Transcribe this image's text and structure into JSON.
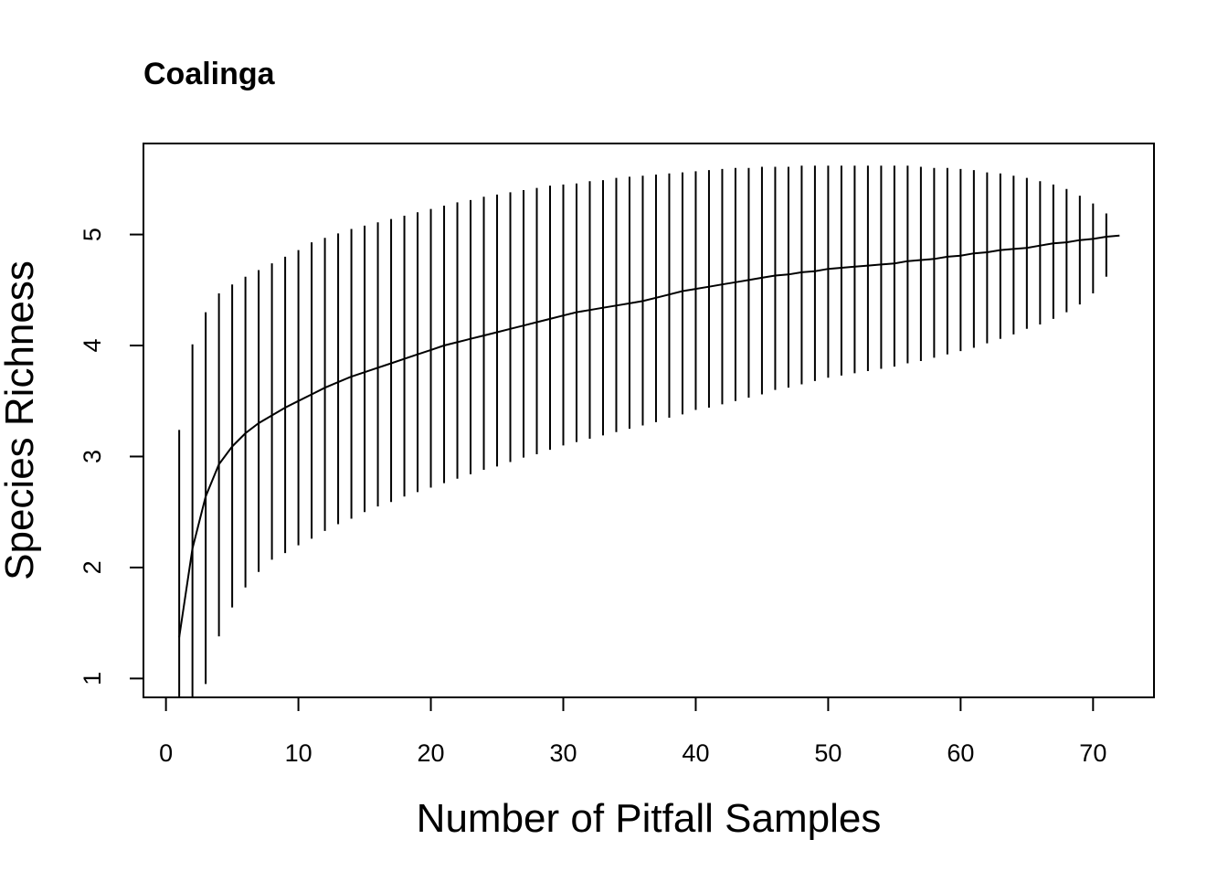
{
  "chart_data": {
    "type": "line",
    "title": "Coalinga",
    "xlabel": "Number of Pitfall Samples",
    "ylabel": "Species Richness",
    "xlim": [
      -1.7,
      74.6
    ],
    "ylim": [
      0.83,
      5.82
    ],
    "x_ticks": [
      "0",
      "10",
      "20",
      "30",
      "40",
      "50",
      "60",
      "70"
    ],
    "y_ticks": [
      "1",
      "2",
      "3",
      "4",
      "5"
    ],
    "grid": false,
    "legend": "none",
    "line_color": "#000000",
    "series": [
      {
        "x": [
          1,
          2,
          3,
          4,
          5,
          6,
          7,
          8,
          9,
          10,
          11,
          12,
          13,
          14,
          15,
          16,
          17,
          18,
          19,
          20,
          21,
          22,
          23,
          24,
          25,
          26,
          27,
          28,
          29,
          30,
          31,
          32,
          33,
          34,
          35,
          36,
          37,
          38,
          39,
          40,
          41,
          42,
          43,
          44,
          45,
          46,
          47,
          48,
          49,
          50,
          51,
          52,
          53,
          54,
          55,
          56,
          57,
          58,
          59,
          60,
          61,
          62,
          63,
          64,
          65,
          66,
          67,
          68,
          69,
          70,
          71,
          72
        ],
        "y": [
          1.37,
          2.17,
          2.64,
          2.93,
          3.09,
          3.21,
          3.3,
          3.37,
          3.44,
          3.5,
          3.56,
          3.62,
          3.67,
          3.72,
          3.76,
          3.8,
          3.84,
          3.88,
          3.92,
          3.96,
          4.0,
          4.03,
          4.06,
          4.09,
          4.12,
          4.15,
          4.18,
          4.21,
          4.24,
          4.27,
          4.3,
          4.32,
          4.34,
          4.36,
          4.38,
          4.4,
          4.43,
          4.46,
          4.49,
          4.51,
          4.53,
          4.55,
          4.57,
          4.59,
          4.61,
          4.63,
          4.64,
          4.66,
          4.67,
          4.69,
          4.7,
          4.71,
          4.72,
          4.73,
          4.74,
          4.76,
          4.77,
          4.78,
          4.8,
          4.81,
          4.83,
          4.84,
          4.86,
          4.87,
          4.88,
          4.9,
          4.92,
          4.93,
          4.95,
          4.96,
          4.98,
          4.99
        ],
        "upper": [
          3.24,
          4.01,
          4.3,
          4.47,
          4.55,
          4.62,
          4.68,
          4.74,
          4.8,
          4.86,
          4.93,
          4.97,
          5.01,
          5.05,
          5.08,
          5.11,
          5.14,
          5.17,
          5.2,
          5.23,
          5.26,
          5.29,
          5.31,
          5.34,
          5.36,
          5.38,
          5.4,
          5.42,
          5.44,
          5.45,
          5.46,
          5.48,
          5.49,
          5.51,
          5.52,
          5.53,
          5.54,
          5.55,
          5.56,
          5.57,
          5.58,
          5.59,
          5.6,
          5.6,
          5.61,
          5.61,
          5.61,
          5.62,
          5.62,
          5.62,
          5.62,
          5.62,
          5.62,
          5.62,
          5.62,
          5.62,
          5.61,
          5.6,
          5.6,
          5.59,
          5.58,
          5.56,
          5.55,
          5.53,
          5.51,
          5.48,
          5.45,
          5.41,
          5.35,
          5.28,
          5.19,
          5.0
        ],
        "lower": [
          0.83,
          0.83,
          0.95,
          1.38,
          1.64,
          1.82,
          1.96,
          2.07,
          2.13,
          2.2,
          2.26,
          2.33,
          2.39,
          2.44,
          2.5,
          2.55,
          2.59,
          2.64,
          2.68,
          2.72,
          2.76,
          2.8,
          2.84,
          2.88,
          2.91,
          2.95,
          2.99,
          3.02,
          3.06,
          3.1,
          3.13,
          3.16,
          3.19,
          3.22,
          3.25,
          3.28,
          3.31,
          3.35,
          3.38,
          3.42,
          3.44,
          3.47,
          3.5,
          3.53,
          3.56,
          3.6,
          3.62,
          3.65,
          3.68,
          3.71,
          3.73,
          3.75,
          3.77,
          3.79,
          3.81,
          3.84,
          3.86,
          3.89,
          3.92,
          3.95,
          3.98,
          4.02,
          4.06,
          4.1,
          4.15,
          4.19,
          4.24,
          4.3,
          4.37,
          4.47,
          4.62,
          5.0
        ]
      }
    ]
  }
}
